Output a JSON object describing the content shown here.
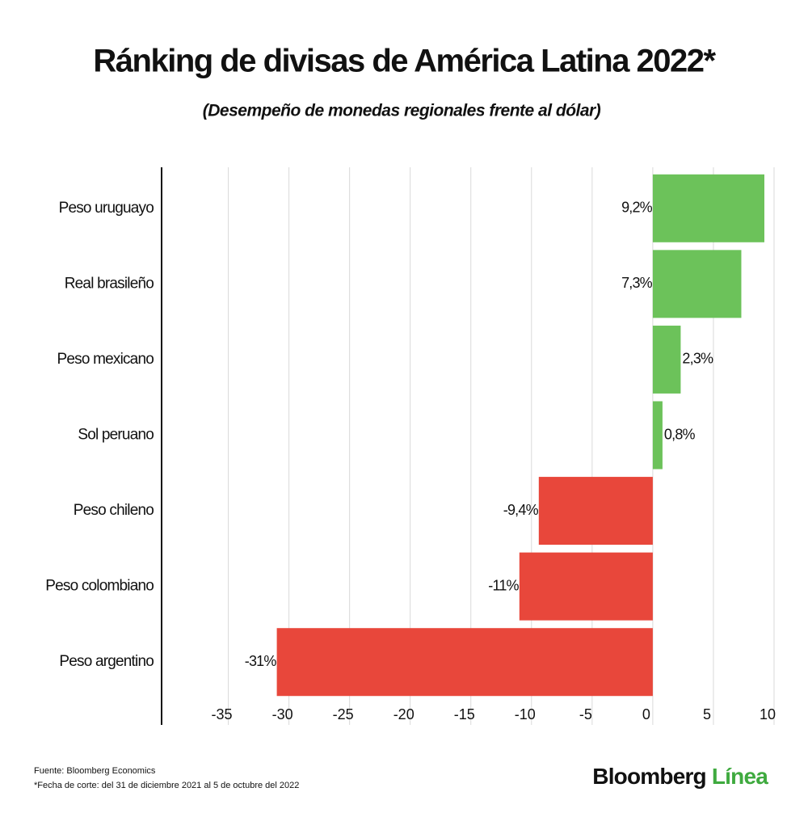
{
  "chart_data": {
    "type": "hbar",
    "title": "Ránking de divisas de América Latina 2022*",
    "subtitle": "(Desempeño de monedas regionales frente al dólar)",
    "categories": [
      "Peso uruguayo",
      "Real brasileño",
      "Peso mexicano",
      "Sol peruano",
      "Peso chileno",
      "Peso colombiano",
      "Peso argentino"
    ],
    "values": [
      9.2,
      7.3,
      2.3,
      0.8,
      -9.4,
      -11,
      -31
    ],
    "value_labels": [
      "9,2%",
      "7,3%",
      "2,3%",
      "0,8%",
      "-9,4%",
      "-11%",
      "-31%"
    ],
    "positive_color": "#6cc25a",
    "negative_color": "#e8473b",
    "xlim": [
      -40.5,
      10
    ],
    "xticks": [
      -35,
      -30,
      -25,
      -20,
      -15,
      -10,
      -5,
      0,
      5,
      10
    ],
    "grid": true,
    "source": "Fuente: Bloomberg Economics",
    "note": "*Fecha de corte: del 31 de diciembre 2021 al 5 de octubre del 2022"
  },
  "brand": {
    "name": "Bloomberg",
    "sub": "Línea"
  }
}
